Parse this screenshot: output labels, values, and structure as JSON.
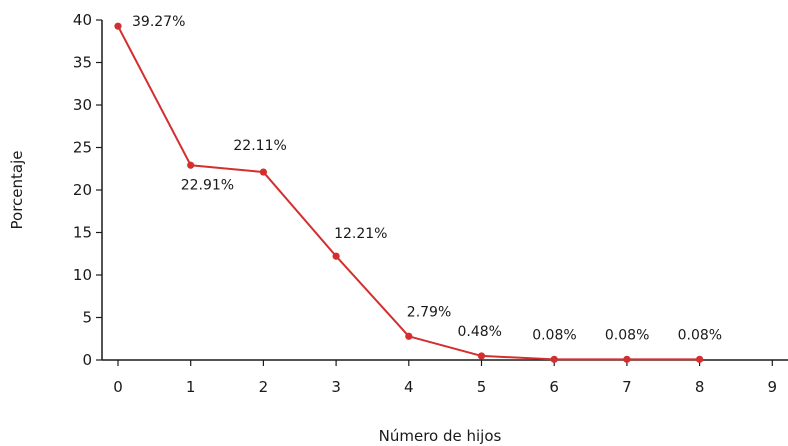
{
  "chart_data": {
    "type": "line",
    "title": "",
    "xlabel": "Número de hijos",
    "ylabel": "Porcentaje",
    "xlim": [
      0,
      9
    ],
    "ylim": [
      0,
      40
    ],
    "xticks": [
      "0",
      "1",
      "2",
      "3",
      "4",
      "5",
      "6",
      "7",
      "8",
      "9"
    ],
    "yticks": [
      "0",
      "5",
      "10",
      "15",
      "20",
      "25",
      "30",
      "35",
      "40"
    ],
    "grid": false,
    "legend": "none",
    "series": [
      {
        "color": "#d32f2f",
        "x": [
          0,
          1,
          2,
          3,
          4,
          5,
          6,
          7,
          8
        ],
        "y": [
          39.27,
          22.91,
          22.11,
          12.21,
          2.79,
          0.48,
          0.08,
          0.08,
          0.08
        ],
        "labels": [
          "39.27%",
          "22.91%",
          "22.11%",
          "12.21%",
          "2.79%",
          "0.48%",
          "0.08%",
          "0.08%",
          "0.08%"
        ]
      }
    ]
  }
}
